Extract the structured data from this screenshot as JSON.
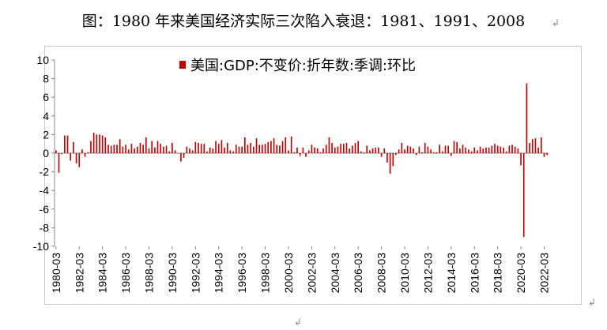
{
  "title": "图：1980 年来美国经济实际三次陷入衰退：1981、1991、2008",
  "chart_data": {
    "type": "bar",
    "title": "",
    "xlabel": "",
    "ylabel": "",
    "ylim": [
      -10,
      10
    ],
    "yticks": [
      10,
      8,
      6,
      4,
      2,
      0,
      -2,
      -4,
      -6,
      -8,
      -10
    ],
    "grid": false,
    "legend_position": "top-right",
    "series": [
      {
        "name": "美国:GDP:不变价:折年数:季调:环比",
        "color": "#c00000",
        "x": [
          "1980-03",
          "1980-06",
          "1980-09",
          "1980-12",
          "1981-03",
          "1981-06",
          "1981-09",
          "1981-12",
          "1982-03",
          "1982-06",
          "1982-09",
          "1982-12",
          "1983-03",
          "1983-06",
          "1983-09",
          "1983-12",
          "1984-03",
          "1984-06",
          "1984-09",
          "1984-12",
          "1985-03",
          "1985-06",
          "1985-09",
          "1985-12",
          "1986-03",
          "1986-06",
          "1986-09",
          "1986-12",
          "1987-03",
          "1987-06",
          "1987-09",
          "1987-12",
          "1988-03",
          "1988-06",
          "1988-09",
          "1988-12",
          "1989-03",
          "1989-06",
          "1989-09",
          "1989-12",
          "1990-03",
          "1990-06",
          "1990-09",
          "1990-12",
          "1991-03",
          "1991-06",
          "1991-09",
          "1991-12",
          "1992-03",
          "1992-06",
          "1992-09",
          "1992-12",
          "1993-03",
          "1993-06",
          "1993-09",
          "1993-12",
          "1994-03",
          "1994-06",
          "1994-09",
          "1994-12",
          "1995-03",
          "1995-06",
          "1995-09",
          "1995-12",
          "1996-03",
          "1996-06",
          "1996-09",
          "1996-12",
          "1997-03",
          "1997-06",
          "1997-09",
          "1997-12",
          "1998-03",
          "1998-06",
          "1998-09",
          "1998-12",
          "1999-03",
          "1999-06",
          "1999-09",
          "1999-12",
          "2000-03",
          "2000-06",
          "2000-09",
          "2000-12",
          "2001-03",
          "2001-06",
          "2001-09",
          "2001-12",
          "2002-03",
          "2002-06",
          "2002-09",
          "2002-12",
          "2003-03",
          "2003-06",
          "2003-09",
          "2003-12",
          "2004-03",
          "2004-06",
          "2004-09",
          "2004-12",
          "2005-03",
          "2005-06",
          "2005-09",
          "2005-12",
          "2006-03",
          "2006-06",
          "2006-09",
          "2006-12",
          "2007-03",
          "2007-06",
          "2007-09",
          "2007-12",
          "2008-03",
          "2008-06",
          "2008-09",
          "2008-12",
          "2009-03",
          "2009-06",
          "2009-09",
          "2009-12",
          "2010-03",
          "2010-06",
          "2010-09",
          "2010-12",
          "2011-03",
          "2011-06",
          "2011-09",
          "2011-12",
          "2012-03",
          "2012-06",
          "2012-09",
          "2012-12",
          "2013-03",
          "2013-06",
          "2013-09",
          "2013-12",
          "2014-03",
          "2014-06",
          "2014-09",
          "2014-12",
          "2015-03",
          "2015-06",
          "2015-09",
          "2015-12",
          "2016-03",
          "2016-06",
          "2016-09",
          "2016-12",
          "2017-03",
          "2017-06",
          "2017-09",
          "2017-12",
          "2018-03",
          "2018-06",
          "2018-09",
          "2018-12",
          "2019-03",
          "2019-06",
          "2019-09",
          "2019-12",
          "2020-03",
          "2020-06",
          "2020-09",
          "2020-12",
          "2021-03",
          "2021-06",
          "2021-09",
          "2021-12",
          "2022-03",
          "2022-06"
        ],
        "values": [
          0.3,
          -2.1,
          -0.1,
          1.9,
          1.9,
          -0.8,
          1.2,
          -1.1,
          -1.5,
          0.4,
          -0.4,
          0.1,
          1.3,
          2.2,
          2.0,
          2.0,
          1.9,
          1.7,
          0.9,
          0.8,
          0.9,
          0.9,
          1.5,
          0.7,
          0.9,
          0.4,
          1.0,
          0.5,
          0.7,
          1.1,
          0.9,
          1.7,
          0.5,
          1.3,
          0.6,
          1.3,
          1.0,
          0.7,
          0.8,
          0.2,
          1.1,
          0.3,
          0.0,
          -0.9,
          -0.5,
          0.7,
          0.5,
          0.3,
          1.2,
          1.1,
          1.0,
          1.0,
          0.2,
          0.6,
          0.5,
          1.3,
          1.0,
          1.4,
          0.6,
          1.1,
          0.3,
          0.2,
          0.9,
          0.7,
          0.7,
          1.7,
          0.9,
          1.1,
          0.7,
          1.6,
          0.9,
          0.9,
          1.0,
          1.2,
          1.3,
          1.6,
          0.9,
          0.8,
          1.3,
          1.7,
          0.3,
          1.8,
          0.1,
          0.6,
          -0.3,
          0.6,
          -0.4,
          0.3,
          0.9,
          0.6,
          0.5,
          0.1,
          0.5,
          0.9,
          1.7,
          1.1,
          0.6,
          0.7,
          1.0,
          1.0,
          1.1,
          0.5,
          0.8,
          1.1,
          1.3,
          0.2,
          0.1,
          0.8,
          0.3,
          0.5,
          0.6,
          0.6,
          -0.4,
          0.5,
          -1.0,
          -2.2,
          -1.4,
          -0.2,
          0.4,
          1.1,
          0.4,
          0.8,
          0.7,
          0.5,
          -0.2,
          0.7,
          0.1,
          1.1,
          0.7,
          0.4,
          0.1,
          0.1,
          0.9,
          0.2,
          0.8,
          0.8,
          -0.3,
          1.3,
          1.2,
          0.5,
          0.9,
          0.6,
          0.4,
          0.2,
          0.6,
          0.3,
          0.7,
          0.5,
          0.6,
          0.6,
          0.8,
          1.0,
          0.8,
          0.7,
          0.6,
          0.2,
          0.8,
          0.9,
          0.7,
          0.5,
          -1.3,
          -9.0,
          7.5,
          1.1,
          1.5,
          1.6,
          0.6,
          1.7,
          -0.4,
          -0.2
        ]
      }
    ],
    "x_tick_labels": [
      "1980-03",
      "1982-03",
      "1984-03",
      "1986-03",
      "1988-03",
      "1990-03",
      "1992-03",
      "1994-03",
      "1996-03",
      "1998-03",
      "2000-03",
      "2002-03",
      "2004-03",
      "2006-03",
      "2008-03",
      "2010-03",
      "2012-03",
      "2014-03",
      "2016-03",
      "2018-03",
      "2020-03",
      "2022-03"
    ]
  }
}
